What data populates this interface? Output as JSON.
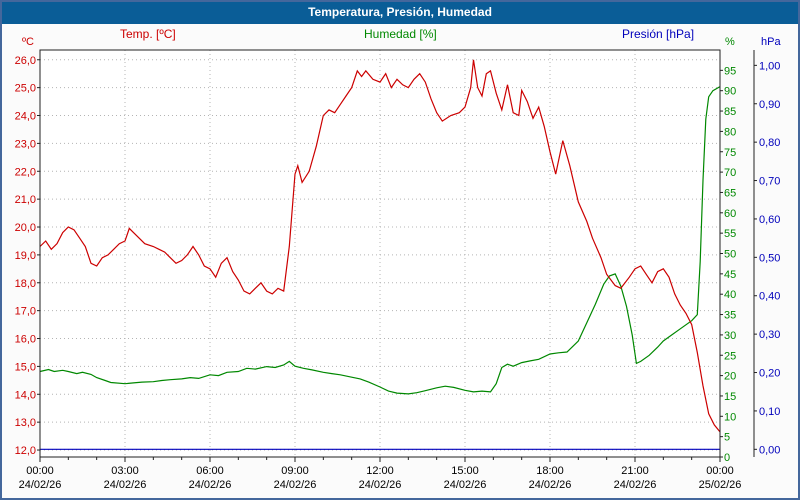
{
  "window": {
    "title": "Temperatura, Presión, Humedad"
  },
  "colors": {
    "titlebar": "#0a5d97",
    "frame_border": "#44679c",
    "plot_background": "#ffffff",
    "grid": "#b4b4b4"
  },
  "legend": [
    {
      "label": "Temp. [ºC]",
      "color": "#cc0000"
    },
    {
      "label": "Humedad [%]",
      "color": "#008800"
    },
    {
      "label": "Presión [hPa]",
      "color": "#0000bb"
    }
  ],
  "chart_data": {
    "type": "line",
    "title": "Temperatura, Presión, Humedad",
    "grid": true,
    "x_axis": {
      "range_hours": [
        0,
        24
      ],
      "major_tick_hours": 3,
      "tick_labels": [
        "00:00",
        "03:00",
        "06:00",
        "09:00",
        "12:00",
        "15:00",
        "18:00",
        "21:00",
        "00:00"
      ],
      "date_labels": [
        "24/02/26",
        "24/02/26",
        "24/02/26",
        "24/02/26",
        "24/02/26",
        "24/02/26",
        "24/02/26",
        "24/02/26",
        "25/02/26"
      ]
    },
    "y_axes": [
      {
        "id": "temp",
        "unit": "ºC",
        "side": "left",
        "color": "#cc0000",
        "min": 12,
        "max": 26,
        "step": 1,
        "scale_min": 11.75,
        "scale_max": 26.35,
        "decimals": 1
      },
      {
        "id": "hum",
        "unit": "%",
        "side": "right-inner",
        "color": "#008800",
        "min": 0,
        "max": 95,
        "step": 5,
        "scale_min": 0,
        "scale_max": 100,
        "decimals": 0
      },
      {
        "id": "pres",
        "unit": "hPa",
        "side": "right-outer",
        "color": "#0000bb",
        "min": 0,
        "max": 1,
        "step": 0.1,
        "scale_min": -0.02,
        "scale_max": 1.04,
        "decimals": 2
      }
    ],
    "series": [
      {
        "name": "Temp. [ºC]",
        "axis": "temp",
        "color": "#cc0000",
        "points": [
          [
            0,
            19.3
          ],
          [
            0.2,
            19.5
          ],
          [
            0.4,
            19.2
          ],
          [
            0.6,
            19.4
          ],
          [
            0.8,
            19.8
          ],
          [
            1,
            20
          ],
          [
            1.2,
            19.9
          ],
          [
            1.4,
            19.6
          ],
          [
            1.6,
            19.3
          ],
          [
            1.8,
            18.7
          ],
          [
            2,
            18.6
          ],
          [
            2.2,
            18.9
          ],
          [
            2.4,
            19
          ],
          [
            2.6,
            19.2
          ],
          [
            2.8,
            19.4
          ],
          [
            3,
            19.5
          ],
          [
            3.15,
            19.95
          ],
          [
            3.3,
            19.8
          ],
          [
            3.5,
            19.6
          ],
          [
            3.7,
            19.4
          ],
          [
            4,
            19.3
          ],
          [
            4.2,
            19.2
          ],
          [
            4.4,
            19.1
          ],
          [
            4.6,
            18.9
          ],
          [
            4.8,
            18.7
          ],
          [
            5,
            18.8
          ],
          [
            5.2,
            19
          ],
          [
            5.4,
            19.3
          ],
          [
            5.6,
            19
          ],
          [
            5.8,
            18.6
          ],
          [
            6,
            18.5
          ],
          [
            6.2,
            18.2
          ],
          [
            6.4,
            18.7
          ],
          [
            6.6,
            18.9
          ],
          [
            6.8,
            18.4
          ],
          [
            7,
            18.1
          ],
          [
            7.2,
            17.7
          ],
          [
            7.4,
            17.6
          ],
          [
            7.6,
            17.8
          ],
          [
            7.8,
            18
          ],
          [
            8,
            17.7
          ],
          [
            8.2,
            17.6
          ],
          [
            8.4,
            17.8
          ],
          [
            8.6,
            17.7
          ],
          [
            8.8,
            19.3
          ],
          [
            9,
            21.9
          ],
          [
            9.1,
            22.2
          ],
          [
            9.25,
            21.6
          ],
          [
            9.5,
            22
          ],
          [
            9.75,
            22.9
          ],
          [
            10,
            24
          ],
          [
            10.2,
            24.2
          ],
          [
            10.4,
            24.1
          ],
          [
            10.6,
            24.4
          ],
          [
            10.8,
            24.7
          ],
          [
            11,
            25
          ],
          [
            11.2,
            25.6
          ],
          [
            11.35,
            25.4
          ],
          [
            11.5,
            25.6
          ],
          [
            11.75,
            25.3
          ],
          [
            12,
            25.2
          ],
          [
            12.2,
            25.5
          ],
          [
            12.4,
            25
          ],
          [
            12.6,
            25.3
          ],
          [
            12.8,
            25.1
          ],
          [
            13,
            25
          ],
          [
            13.2,
            25.3
          ],
          [
            13.4,
            25.5
          ],
          [
            13.6,
            25.2
          ],
          [
            13.8,
            24.6
          ],
          [
            14,
            24.1
          ],
          [
            14.2,
            23.8
          ],
          [
            14.5,
            24
          ],
          [
            14.8,
            24.1
          ],
          [
            15,
            24.3
          ],
          [
            15.2,
            25
          ],
          [
            15.3,
            26
          ],
          [
            15.45,
            25
          ],
          [
            15.6,
            24.7
          ],
          [
            15.75,
            25.5
          ],
          [
            15.9,
            25.6
          ],
          [
            16.1,
            24.8
          ],
          [
            16.3,
            24.2
          ],
          [
            16.5,
            25.1
          ],
          [
            16.7,
            24.1
          ],
          [
            16.9,
            24
          ],
          [
            17,
            24.9
          ],
          [
            17.2,
            24.5
          ],
          [
            17.4,
            23.9
          ],
          [
            17.6,
            24.3
          ],
          [
            17.8,
            23.6
          ],
          [
            18,
            22.7
          ],
          [
            18.2,
            21.9
          ],
          [
            18.45,
            23.1
          ],
          [
            18.7,
            22.2
          ],
          [
            19,
            20.9
          ],
          [
            19.3,
            20.2
          ],
          [
            19.5,
            19.6
          ],
          [
            19.8,
            18.9
          ],
          [
            20,
            18.3
          ],
          [
            20.3,
            17.9
          ],
          [
            20.5,
            17.8
          ],
          [
            20.8,
            18.2
          ],
          [
            21,
            18.5
          ],
          [
            21.2,
            18.6
          ],
          [
            21.4,
            18.3
          ],
          [
            21.6,
            18
          ],
          [
            21.8,
            18.4
          ],
          [
            22,
            18.5
          ],
          [
            22.2,
            18.2
          ],
          [
            22.4,
            17.6
          ],
          [
            22.6,
            17.2
          ],
          [
            22.8,
            16.9
          ],
          [
            23,
            16.5
          ],
          [
            23.2,
            15.5
          ],
          [
            23.4,
            14.3
          ],
          [
            23.6,
            13.3
          ],
          [
            23.8,
            12.9
          ],
          [
            24,
            12.65
          ]
        ]
      },
      {
        "name": "Humedad [%]",
        "axis": "hum",
        "color": "#008800",
        "points": [
          [
            0,
            21
          ],
          [
            0.3,
            21.5
          ],
          [
            0.5,
            21
          ],
          [
            0.8,
            21.3
          ],
          [
            1,
            21
          ],
          [
            1.3,
            20.5
          ],
          [
            1.5,
            20.8
          ],
          [
            1.8,
            20.3
          ],
          [
            2,
            19.5
          ],
          [
            2.3,
            18.8
          ],
          [
            2.5,
            18.3
          ],
          [
            3,
            18
          ],
          [
            3.3,
            18.2
          ],
          [
            3.6,
            18.4
          ],
          [
            4,
            18.5
          ],
          [
            4.3,
            18.8
          ],
          [
            4.6,
            19
          ],
          [
            5,
            19.2
          ],
          [
            5.3,
            19.5
          ],
          [
            5.6,
            19.3
          ],
          [
            6,
            20.2
          ],
          [
            6.3,
            20
          ],
          [
            6.6,
            20.8
          ],
          [
            7,
            21
          ],
          [
            7.3,
            21.8
          ],
          [
            7.6,
            21.6
          ],
          [
            8,
            22.2
          ],
          [
            8.3,
            22
          ],
          [
            8.6,
            22.6
          ],
          [
            8.8,
            23.5
          ],
          [
            9,
            22.3
          ],
          [
            9.3,
            21.8
          ],
          [
            9.6,
            21.4
          ],
          [
            10,
            20.8
          ],
          [
            10.3,
            20.5
          ],
          [
            10.6,
            20.2
          ],
          [
            11,
            19.6
          ],
          [
            11.3,
            19.2
          ],
          [
            11.6,
            18.4
          ],
          [
            12,
            17.2
          ],
          [
            12.3,
            16.2
          ],
          [
            12.6,
            15.7
          ],
          [
            13,
            15.5
          ],
          [
            13.3,
            15.8
          ],
          [
            13.6,
            16.3
          ],
          [
            14,
            17
          ],
          [
            14.3,
            17.4
          ],
          [
            14.6,
            17.1
          ],
          [
            15,
            16.4
          ],
          [
            15.3,
            16
          ],
          [
            15.6,
            16.2
          ],
          [
            15.9,
            16
          ],
          [
            16.1,
            18
          ],
          [
            16.3,
            22
          ],
          [
            16.5,
            22.8
          ],
          [
            16.7,
            22.3
          ],
          [
            17,
            23.2
          ],
          [
            17.3,
            23.6
          ],
          [
            17.6,
            24
          ],
          [
            18,
            25.3
          ],
          [
            18.3,
            25.6
          ],
          [
            18.6,
            25.8
          ],
          [
            19,
            28.5
          ],
          [
            19.3,
            33
          ],
          [
            19.6,
            37.5
          ],
          [
            19.9,
            42.5
          ],
          [
            20.1,
            44.5
          ],
          [
            20.3,
            45
          ],
          [
            20.5,
            42
          ],
          [
            20.7,
            37
          ],
          [
            20.9,
            30
          ],
          [
            21.05,
            23
          ],
          [
            21.2,
            23.5
          ],
          [
            21.5,
            25
          ],
          [
            21.8,
            27
          ],
          [
            22,
            28.5
          ],
          [
            22.3,
            30
          ],
          [
            22.6,
            31.5
          ],
          [
            23,
            33.5
          ],
          [
            23.2,
            35
          ],
          [
            23.3,
            48
          ],
          [
            23.4,
            68
          ],
          [
            23.5,
            83
          ],
          [
            23.6,
            88.5
          ],
          [
            23.75,
            90
          ],
          [
            24,
            91
          ]
        ]
      },
      {
        "name": "Presión [hPa]",
        "axis": "pres",
        "color": "#0000bb",
        "points": [
          [
            0,
            0
          ],
          [
            3,
            0
          ],
          [
            6,
            0
          ],
          [
            9,
            0
          ],
          [
            12,
            0
          ],
          [
            15,
            0
          ],
          [
            18,
            0
          ],
          [
            21,
            0
          ],
          [
            24,
            0
          ]
        ]
      }
    ]
  }
}
